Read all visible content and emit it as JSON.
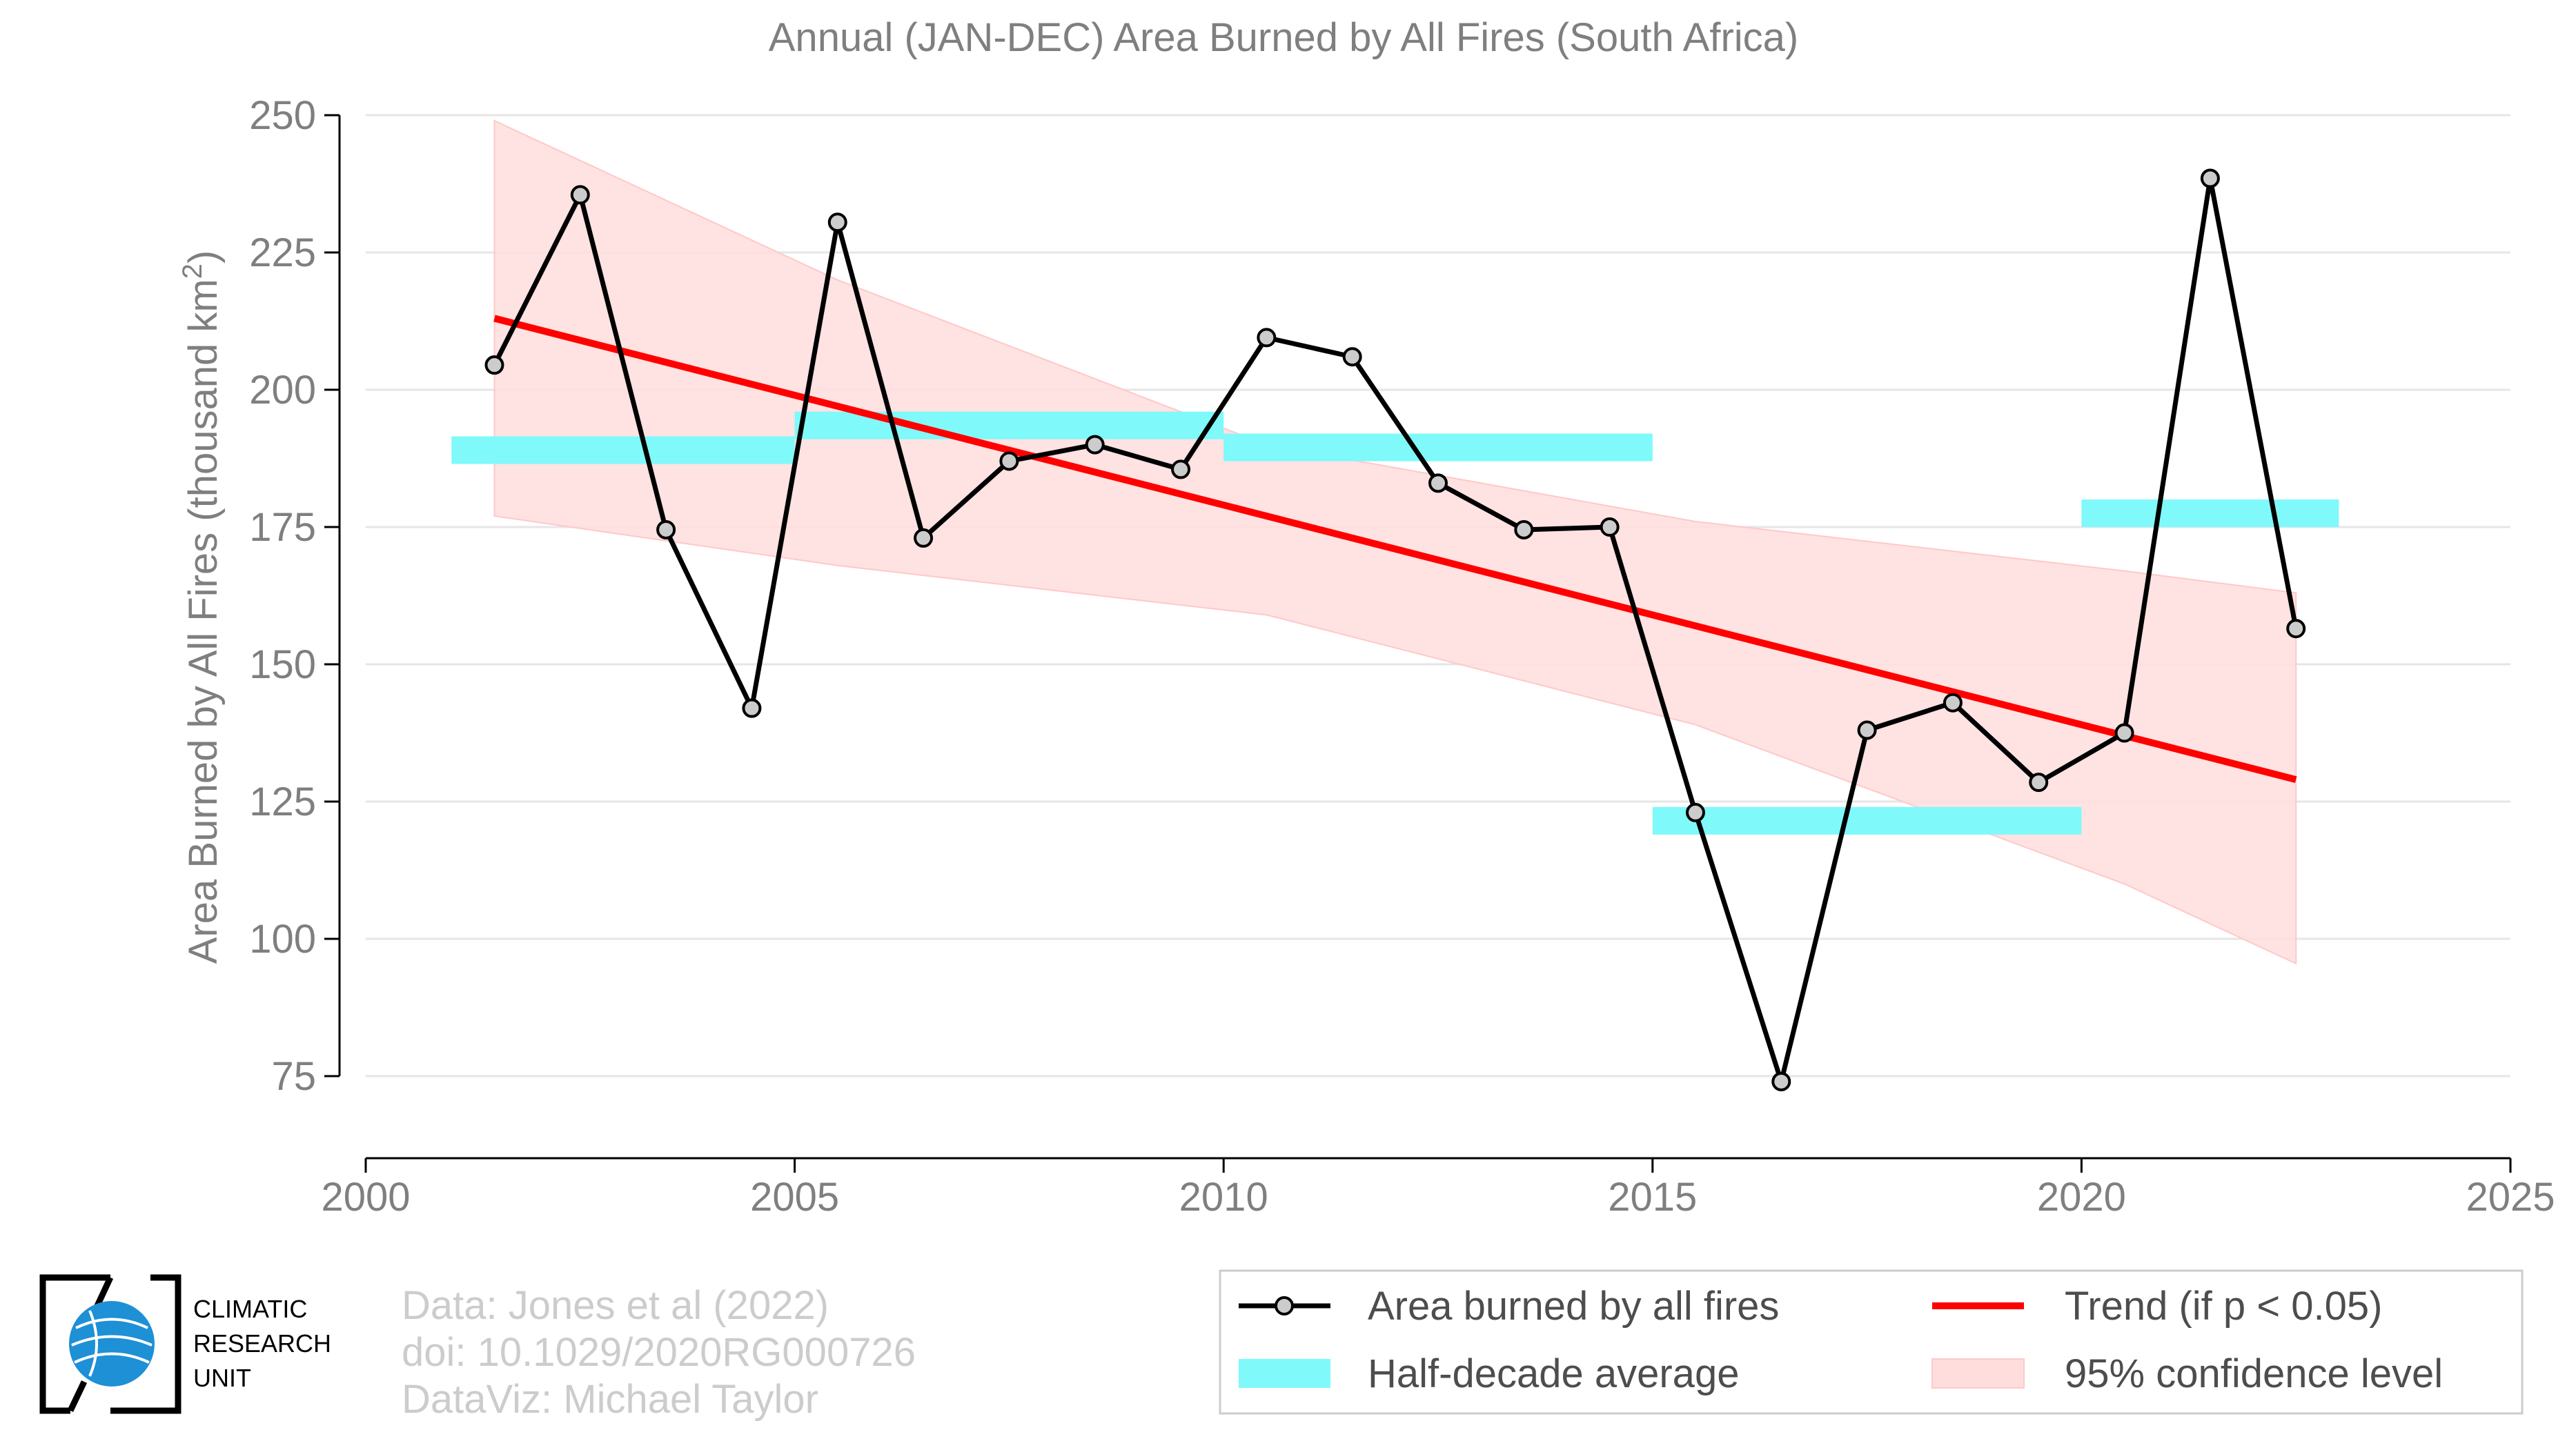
{
  "chart_data": {
    "type": "line",
    "title": "Annual (JAN-DEC) Area Burned by All Fires (South Africa)",
    "ylabel": "Area Burned by All Fires (thousand km²)",
    "ylabel_main": "Area Burned by All Fires (thousand km",
    "ylabel_sup": "2",
    "ylabel_end": ")",
    "xlabel": "",
    "xlim": [
      2000,
      2025
    ],
    "ylim": [
      60,
      250
    ],
    "xticks": [
      2000,
      2005,
      2010,
      2015,
      2020,
      2025
    ],
    "yticks": [
      75,
      100,
      125,
      150,
      175,
      200,
      225,
      250
    ],
    "grid": true,
    "legend_placement": "bottom-right",
    "series": [
      {
        "name": "Area burned by all fires",
        "color": "#000000",
        "marker_fill": "#cccccc",
        "x": [
          2001.5,
          2002.5,
          2003.5,
          2004.5,
          2005.5,
          2006.5,
          2007.5,
          2008.5,
          2009.5,
          2010.5,
          2011.5,
          2012.5,
          2013.5,
          2014.5,
          2015.5,
          2016.5,
          2017.5,
          2018.5,
          2019.5,
          2020.5,
          2021.5,
          2022.5
        ],
        "values": [
          204.5,
          235.5,
          174.5,
          142,
          230.5,
          173,
          187,
          190,
          185.5,
          209.5,
          206,
          183,
          174.5,
          175,
          123,
          74,
          138,
          143,
          128.5,
          137.5,
          238.5,
          156.5
        ]
      },
      {
        "name": "Half-decade average",
        "color": "#7ff9fa",
        "segments": [
          {
            "x0": 2001,
            "x1": 2005,
            "value": 189
          },
          {
            "x0": 2005,
            "x1": 2010,
            "value": 193.5
          },
          {
            "x0": 2010,
            "x1": 2015,
            "value": 189.5
          },
          {
            "x0": 2015,
            "x1": 2020,
            "value": 121.5
          },
          {
            "x0": 2020,
            "x1": 2023,
            "value": 177.5
          }
        ]
      },
      {
        "name": "Trend (if p < 0.05)",
        "color": "#ff0000",
        "x": [
          2001.5,
          2022.5
        ],
        "values": [
          213,
          129
        ]
      },
      {
        "name": "95% confidence level",
        "color": "#ffdddd",
        "x": [
          2001.5,
          2005.5,
          2010.5,
          2015.5,
          2020.5,
          2022.5
        ],
        "upper": [
          249,
          220,
          190,
          176,
          167,
          163
        ],
        "lower": [
          177,
          168,
          159,
          139,
          110,
          95.5
        ]
      }
    ]
  },
  "credits": {
    "line1": "Data: Jones et al (2022)",
    "line2": "doi: 10.1029/2020RG000726",
    "line3": "DataViz: Michael Taylor"
  },
  "logo": {
    "line1": "CLIMATIC",
    "line2": "RESEARCH",
    "line3": "UNIT",
    "globe_color": "#1e90d6"
  }
}
